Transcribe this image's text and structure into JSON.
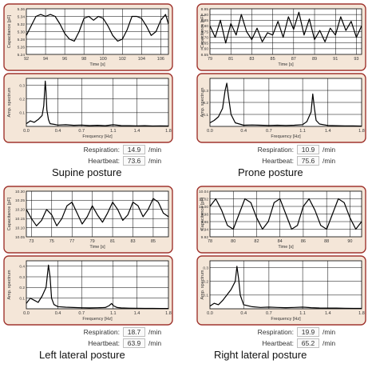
{
  "colors": {
    "frame": "#a0352f",
    "frame_fill": "#f4e6d8",
    "plot_fill": "#ffffff",
    "line": "#000000",
    "grid": "#000000"
  },
  "labels": {
    "time_axis": "Time [s]",
    "freq_axis": "Frequency [Hz]",
    "cap_axis": "Capacitance [pF]",
    "amp_axis": "Amp. spectrum",
    "respiration": "Respiration:",
    "heartbeat": "Heartbeat:",
    "unit": "/min"
  },
  "panels": [
    {
      "posture": "Supine posture",
      "respiration": "14.9",
      "heartbeat": "73.6"
    },
    {
      "posture": "Prone posture",
      "respiration": "10.9",
      "heartbeat": "75.6"
    },
    {
      "posture": "Left lateral posture",
      "respiration": "18.7",
      "heartbeat": "63.9"
    },
    {
      "posture": "Right lateral posture",
      "respiration": "19.9",
      "heartbeat": "65.2"
    }
  ],
  "chart_data": [
    {
      "type": "line",
      "panel": "Supine posture",
      "xlabel": "Time [s]",
      "ylabel": "Capacitance [pF]",
      "xlim": [
        92,
        106.8
      ],
      "ylim": [
        5.24,
        5.36
      ],
      "xticks": [
        92,
        94,
        96,
        98,
        100,
        102,
        104,
        106
      ],
      "yticks": [
        5.24,
        5.26,
        5.28,
        5.3,
        5.32,
        5.34,
        5.36
      ],
      "x": [
        92,
        92.5,
        93,
        93.5,
        94,
        94.5,
        95,
        95.5,
        96,
        96.5,
        97,
        97.5,
        98,
        98.5,
        99,
        99.5,
        100,
        100.5,
        101,
        101.5,
        102,
        102.5,
        103,
        103.5,
        104,
        104.5,
        105,
        105.5,
        106,
        106.5,
        106.8
      ],
      "y": [
        5.29,
        5.315,
        5.34,
        5.345,
        5.34,
        5.345,
        5.34,
        5.32,
        5.295,
        5.28,
        5.275,
        5.3,
        5.335,
        5.34,
        5.33,
        5.34,
        5.335,
        5.315,
        5.29,
        5.275,
        5.28,
        5.305,
        5.34,
        5.34,
        5.335,
        5.315,
        5.29,
        5.3,
        5.33,
        5.345,
        5.32
      ]
    },
    {
      "type": "line",
      "panel": "Supine posture",
      "xlabel": "Frequency [Hz]",
      "ylabel": "Amp. spectrum",
      "xlim": [
        0,
        1.8
      ],
      "ylim": [
        0,
        0.35
      ],
      "xticks": [
        0.0,
        0.4,
        0.7,
        1.1,
        1.4,
        1.8
      ],
      "yticks": [
        0.1,
        0.2,
        0.3
      ],
      "x": [
        0,
        0.05,
        0.1,
        0.15,
        0.2,
        0.22,
        0.24,
        0.25,
        0.26,
        0.28,
        0.3,
        0.35,
        0.4,
        0.5,
        0.6,
        0.7,
        0.8,
        0.9,
        1.0,
        1.1,
        1.2,
        1.3,
        1.4,
        1.5,
        1.6,
        1.7,
        1.8
      ],
      "y": [
        0.02,
        0.04,
        0.03,
        0.05,
        0.08,
        0.15,
        0.33,
        0.25,
        0.12,
        0.05,
        0.02,
        0.015,
        0.01,
        0.012,
        0.008,
        0.01,
        0.006,
        0.008,
        0.005,
        0.012,
        0.006,
        0.005,
        0.004,
        0.005,
        0.003,
        0.004,
        0.003
      ]
    },
    {
      "type": "line",
      "panel": "Prone posture",
      "xlabel": "Time [s]",
      "ylabel": "Capacitance [pF]",
      "xlim": [
        79,
        93.5
      ],
      "ylim": [
        8.55,
        8.95
      ],
      "xticks": [
        79,
        81,
        83,
        85,
        87,
        89,
        91,
        93
      ],
      "yticks": [
        8.55,
        8.6,
        8.65,
        8.7,
        8.75,
        8.8,
        8.85,
        8.9,
        8.95
      ],
      "x": [
        79,
        79.5,
        80,
        80.5,
        81,
        81.5,
        82,
        82.5,
        83,
        83.5,
        84,
        84.5,
        85,
        85.5,
        86,
        86.5,
        87,
        87.5,
        88,
        88.5,
        89,
        89.5,
        90,
        90.5,
        91,
        91.5,
        92,
        92.5,
        93,
        93.5
      ],
      "y": [
        8.8,
        8.7,
        8.85,
        8.65,
        8.82,
        8.72,
        8.9,
        8.75,
        8.68,
        8.78,
        8.66,
        8.74,
        8.72,
        8.84,
        8.7,
        8.88,
        8.77,
        8.92,
        8.72,
        8.86,
        8.68,
        8.76,
        8.66,
        8.78,
        8.72,
        8.88,
        8.76,
        8.84,
        8.7,
        8.8
      ]
    },
    {
      "type": "line",
      "panel": "Prone posture",
      "xlabel": "Frequency [Hz]",
      "ylabel": "Amp. spectrum",
      "xlim": [
        0,
        1.8
      ],
      "ylim": [
        0,
        0.4
      ],
      "xticks": [
        0.0,
        0.4,
        0.7,
        1.1,
        1.4,
        1.8
      ],
      "yticks": [
        0.1,
        0.2,
        0.3
      ],
      "x": [
        0,
        0.05,
        0.1,
        0.15,
        0.18,
        0.2,
        0.22,
        0.25,
        0.3,
        0.35,
        0.4,
        0.5,
        0.6,
        0.7,
        0.8,
        0.9,
        1.0,
        1.1,
        1.15,
        1.2,
        1.22,
        1.24,
        1.26,
        1.3,
        1.4,
        1.5,
        1.6,
        1.7,
        1.8
      ],
      "y": [
        0.03,
        0.05,
        0.08,
        0.15,
        0.3,
        0.36,
        0.25,
        0.1,
        0.03,
        0.02,
        0.01,
        0.012,
        0.01,
        0.008,
        0.01,
        0.008,
        0.01,
        0.015,
        0.04,
        0.12,
        0.27,
        0.15,
        0.05,
        0.02,
        0.008,
        0.006,
        0.005,
        0.004,
        0.003
      ]
    },
    {
      "type": "line",
      "panel": "Left lateral posture",
      "xlabel": "Time [s]",
      "ylabel": "Capacitance [pF]",
      "xlim": [
        72.5,
        86.5
      ],
      "ylim": [
        10.05,
        10.3
      ],
      "xticks": [
        73,
        75,
        77,
        79,
        81,
        83,
        85
      ],
      "yticks": [
        10.05,
        10.1,
        10.15,
        10.2,
        10.25,
        10.3
      ],
      "x": [
        72.5,
        73,
        73.5,
        74,
        74.5,
        75,
        75.5,
        76,
        76.5,
        77,
        77.5,
        78,
        78.5,
        79,
        79.5,
        80,
        80.5,
        81,
        81.5,
        82,
        82.5,
        83,
        83.5,
        84,
        84.5,
        85,
        85.5,
        86,
        86.5
      ],
      "y": [
        10.2,
        10.15,
        10.11,
        10.14,
        10.2,
        10.17,
        10.11,
        10.15,
        10.22,
        10.24,
        10.18,
        10.12,
        10.16,
        10.22,
        10.17,
        10.13,
        10.18,
        10.24,
        10.2,
        10.14,
        10.17,
        10.24,
        10.22,
        10.16,
        10.2,
        10.26,
        10.24,
        10.18,
        10.16
      ]
    },
    {
      "type": "line",
      "panel": "Left lateral posture",
      "xlabel": "Frequency [Hz]",
      "ylabel": "Amp. spectrum",
      "xlim": [
        0,
        1.8
      ],
      "ylim": [
        0,
        0.45
      ],
      "xticks": [
        0.0,
        0.4,
        0.7,
        1.1,
        1.4,
        1.8
      ],
      "yticks": [
        0.1,
        0.2,
        0.3,
        0.4
      ],
      "x": [
        0,
        0.05,
        0.1,
        0.15,
        0.2,
        0.25,
        0.28,
        0.3,
        0.32,
        0.35,
        0.4,
        0.5,
        0.6,
        0.7,
        0.8,
        0.9,
        1.0,
        1.05,
        1.08,
        1.1,
        1.15,
        1.2,
        1.3,
        1.4,
        1.5,
        1.6,
        1.7,
        1.8
      ],
      "y": [
        0.05,
        0.1,
        0.08,
        0.06,
        0.12,
        0.2,
        0.41,
        0.3,
        0.1,
        0.04,
        0.02,
        0.015,
        0.012,
        0.01,
        0.008,
        0.01,
        0.012,
        0.03,
        0.05,
        0.03,
        0.012,
        0.008,
        0.006,
        0.005,
        0.004,
        0.004,
        0.003,
        0.003
      ]
    },
    {
      "type": "line",
      "panel": "Right lateral posture",
      "xlabel": "Time [s]",
      "ylabel": "Capacitance [pF]",
      "xlim": [
        78,
        91
      ],
      "ylim": [
        9.92,
        10.04
      ],
      "xticks": [
        78,
        80,
        82,
        84,
        86,
        88,
        90
      ],
      "yticks": [
        9.92,
        9.94,
        9.96,
        9.98,
        10.0,
        10.02,
        10.04
      ],
      "x": [
        78,
        78.5,
        79,
        79.5,
        80,
        80.5,
        81,
        81.5,
        82,
        82.5,
        83,
        83.5,
        84,
        84.5,
        85,
        85.5,
        86,
        86.5,
        87,
        87.5,
        88,
        88.5,
        89,
        89.5,
        90,
        90.5,
        91
      ],
      "y": [
        10.0,
        10.02,
        9.99,
        9.95,
        9.94,
        9.98,
        10.02,
        10.01,
        9.97,
        9.94,
        9.96,
        10.01,
        10.02,
        9.98,
        9.94,
        9.95,
        10.0,
        10.02,
        9.99,
        9.95,
        9.94,
        9.98,
        10.02,
        10.01,
        9.97,
        9.94,
        9.96
      ]
    },
    {
      "type": "line",
      "panel": "Right lateral posture",
      "xlabel": "Frequency [Hz]",
      "ylabel": "Amp. spectrum",
      "xlim": [
        0,
        1.8
      ],
      "ylim": [
        0,
        0.35
      ],
      "xticks": [
        0.0,
        0.4,
        0.7,
        1.1,
        1.4,
        1.8
      ],
      "yticks": [
        0.1,
        0.2,
        0.3
      ],
      "x": [
        0,
        0.05,
        0.1,
        0.15,
        0.2,
        0.25,
        0.3,
        0.32,
        0.34,
        0.36,
        0.4,
        0.5,
        0.6,
        0.7,
        0.8,
        0.9,
        1.0,
        1.1,
        1.2,
        1.3,
        1.4,
        1.5,
        1.6,
        1.7,
        1.8
      ],
      "y": [
        0.02,
        0.04,
        0.03,
        0.06,
        0.1,
        0.14,
        0.2,
        0.31,
        0.22,
        0.1,
        0.03,
        0.015,
        0.01,
        0.012,
        0.01,
        0.008,
        0.01,
        0.012,
        0.008,
        0.006,
        0.005,
        0.005,
        0.004,
        0.003,
        0.003
      ]
    }
  ]
}
